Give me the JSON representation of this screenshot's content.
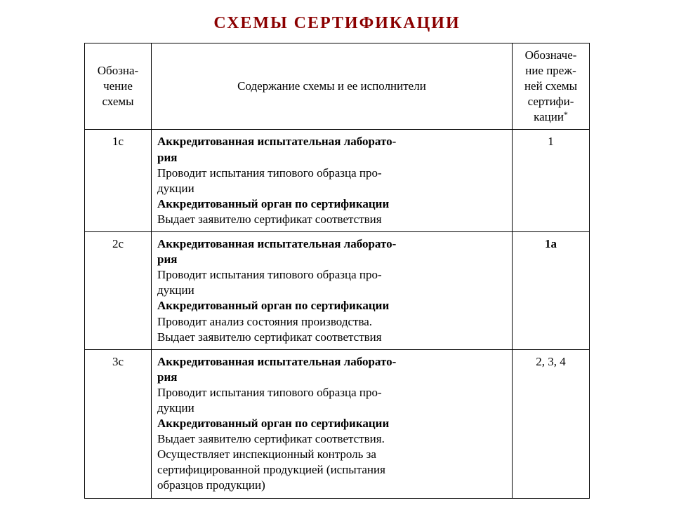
{
  "title": "СХЕМЫ  СЕРТИФИКАЦИИ",
  "headers": {
    "scheme": "Обозна-\nчение\nсхемы",
    "content": "Содержание схемы и ее исполнители",
    "prev": "Обозначе-\nние преж-\nней схемы\nсертифи-\nкации",
    "asterisk": "*"
  },
  "rows": [
    {
      "scheme": "1с",
      "content": [
        {
          "text": "Аккредитованная испытательная лаборато-",
          "bold": true
        },
        {
          "text": "рия",
          "bold": true
        },
        {
          "text": "Проводит испытания типового образца про-",
          "bold": false
        },
        {
          "text": "дукции",
          "bold": false
        },
        {
          "text": "Аккредитованный орган по сертификации",
          "bold": true
        },
        {
          "text": "Выдает заявителю сертификат соответствия",
          "bold": false
        }
      ],
      "prev": "1",
      "prev_bold": false
    },
    {
      "scheme": "2с",
      "content": [
        {
          "text": "Аккредитованная испытательная лаборато-",
          "bold": true
        },
        {
          "text": "рия",
          "bold": true
        },
        {
          "text": "Проводит испытания типового образца про-",
          "bold": false
        },
        {
          "text": "дукции",
          "bold": false
        },
        {
          "text": "Аккредитованный орган по сертификации",
          "bold": true
        },
        {
          "text": "Проводит анализ состояния производства.",
          "bold": false
        },
        {
          "text": "Выдает заявителю сертификат соответствия",
          "bold": false
        }
      ],
      "prev": "1а",
      "prev_bold": true
    },
    {
      "scheme": "3с",
      "content": [
        {
          "text": "Аккредитованная испытательная лаборато-",
          "bold": true
        },
        {
          "text": "рия",
          "bold": true
        },
        {
          "text": "Проводит испытания типового образца про-",
          "bold": false
        },
        {
          "text": "дукции",
          "bold": false
        },
        {
          "text": "Аккредитованный орган по сертификации",
          "bold": true
        },
        {
          "text": "Выдает заявителю сертификат соответствия.",
          "bold": false
        },
        {
          "text": "Осуществляет инспекционный контроль за",
          "bold": false
        },
        {
          "text": "сертифицированной продукцией (испытания",
          "bold": false
        },
        {
          "text": "образцов продукции)",
          "bold": false
        }
      ],
      "prev": "2, 3, 4",
      "prev_bold": false
    }
  ]
}
